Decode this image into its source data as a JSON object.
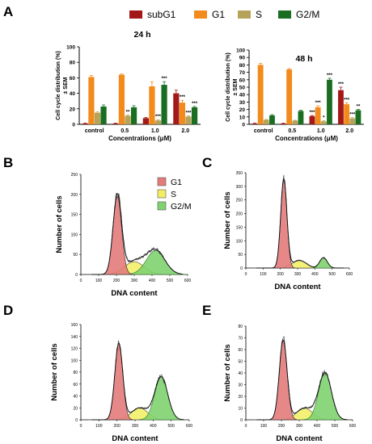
{
  "panel_labels": [
    "A",
    "B",
    "C",
    "D",
    "E"
  ],
  "legend_bar": {
    "items": [
      {
        "name": "subG1",
        "color": "#a31818"
      },
      {
        "name": "G1",
        "color": "#f28a1c"
      },
      {
        "name": "S",
        "color": "#b5a35a"
      },
      {
        "name": "G2/M",
        "color": "#1a6e22"
      }
    ]
  },
  "legend_hist": {
    "items": [
      {
        "name": "G1",
        "color": "#e47b7b"
      },
      {
        "name": "S",
        "color": "#f2ee62"
      },
      {
        "name": "G2/M",
        "color": "#7fd36f"
      }
    ]
  },
  "chart_data": [
    {
      "type": "bar",
      "panel": "A-left",
      "title": "24 h",
      "ylabel": "Cell cycle distribution (%)\n± SEM",
      "xlabel": "Concentrations (μM)",
      "categories": [
        "control",
        "0.5",
        "1.0",
        "2.0"
      ],
      "ylim": [
        0,
        100
      ],
      "yticks": [
        0,
        20,
        40,
        60,
        80,
        100
      ],
      "series": [
        {
          "name": "subG1",
          "values": [
            1,
            1,
            8,
            40
          ],
          "err": [
            0.5,
            0.5,
            1,
            4
          ]
        },
        {
          "name": "G1",
          "values": [
            61,
            64,
            49,
            28
          ],
          "err": [
            2,
            1,
            6,
            3
          ]
        },
        {
          "name": "S",
          "values": [
            15,
            11,
            5,
            10
          ],
          "err": [
            1,
            1,
            1,
            1
          ]
        },
        {
          "name": "G2/M",
          "values": [
            23,
            22,
            51,
            22
          ],
          "err": [
            2,
            2,
            4,
            1
          ]
        }
      ],
      "significance": [
        [
          null,
          null,
          null,
          null
        ],
        [
          null,
          null,
          null,
          "***"
        ],
        [
          null,
          "**",
          "***",
          "***"
        ],
        [
          null,
          null,
          "***",
          "***"
        ]
      ]
    },
    {
      "type": "bar",
      "panel": "A-right",
      "title": "48 h",
      "ylabel": "Cell cycle distribution (%)\n± SEM",
      "xlabel": "Concentrations (μM)",
      "categories": [
        "control",
        "0.5",
        "1.0",
        "2.0"
      ],
      "ylim": [
        0,
        100
      ],
      "yticks": [
        0,
        10,
        20,
        30,
        40,
        50,
        60,
        70,
        80,
        90,
        100
      ],
      "series": [
        {
          "name": "subG1",
          "values": [
            1,
            1,
            11,
            46
          ],
          "err": [
            0.5,
            0.5,
            1,
            4
          ]
        },
        {
          "name": "G1",
          "values": [
            80,
            74,
            23,
            27
          ],
          "err": [
            2,
            1,
            2,
            2
          ]
        },
        {
          "name": "S",
          "values": [
            6,
            5,
            4,
            8
          ],
          "err": [
            0.5,
            0.5,
            1,
            1
          ]
        },
        {
          "name": "G2/M",
          "values": [
            12,
            18,
            60,
            19
          ],
          "err": [
            1,
            1,
            2,
            1
          ]
        }
      ],
      "significance": [
        [
          null,
          null,
          "***",
          "***"
        ],
        [
          null,
          null,
          "***",
          "***"
        ],
        [
          null,
          null,
          "*",
          "***"
        ],
        [
          null,
          null,
          "***",
          "**"
        ]
      ]
    },
    {
      "type": "area",
      "panel": "B",
      "ylabel": "Number of cells",
      "xlabel": "DNA content",
      "xlim": [
        0,
        600
      ],
      "xticks": [
        0,
        100,
        200,
        300,
        400,
        500,
        600
      ],
      "ylim": [
        0,
        250
      ],
      "yticks": [
        0,
        50,
        100,
        150,
        200,
        250
      ],
      "peaks": [
        {
          "phase": "G1",
          "center": 205,
          "sd": 24,
          "height": 195
        },
        {
          "phase": "S",
          "center": 300,
          "sd": 55,
          "height": 32
        },
        {
          "phase": "G2/M",
          "center": 420,
          "sd": 52,
          "height": 60
        }
      ]
    },
    {
      "type": "area",
      "panel": "C",
      "ylabel": "Number of cells",
      "xlabel": "DNA content",
      "xlim": [
        0,
        600
      ],
      "xticks": [
        0,
        100,
        200,
        300,
        400,
        500,
        600
      ],
      "ylim": [
        0,
        350
      ],
      "yticks": [
        0,
        50,
        100,
        150,
        200,
        250,
        300,
        350
      ],
      "peaks": [
        {
          "phase": "G1",
          "center": 220,
          "sd": 18,
          "height": 325
        },
        {
          "phase": "S",
          "center": 310,
          "sd": 40,
          "height": 28
        },
        {
          "phase": "G2/M",
          "center": 450,
          "sd": 22,
          "height": 38
        }
      ]
    },
    {
      "type": "area",
      "panel": "D",
      "ylabel": "Number of cells",
      "xlabel": "DNA content",
      "xlim": [
        0,
        600
      ],
      "xticks": [
        0,
        100,
        200,
        300,
        400,
        500,
        600
      ],
      "ylim": [
        0,
        160
      ],
      "yticks": [
        0,
        20,
        40,
        60,
        80,
        100,
        120,
        140,
        160
      ],
      "peaks": [
        {
          "phase": "G1",
          "center": 210,
          "sd": 22,
          "height": 128
        },
        {
          "phase": "S",
          "center": 325,
          "sd": 45,
          "height": 20
        },
        {
          "phase": "G2/M",
          "center": 445,
          "sd": 36,
          "height": 72
        }
      ]
    },
    {
      "type": "area",
      "panel": "E",
      "ylabel": "Number of cells",
      "xlabel": "DNA content",
      "xlim": [
        0,
        600
      ],
      "xticks": [
        0,
        100,
        200,
        300,
        400,
        500,
        600
      ],
      "ylim": [
        0,
        80
      ],
      "yticks": [
        0,
        10,
        20,
        30,
        40,
        50,
        60,
        70,
        80
      ],
      "peaks": [
        {
          "phase": "G1",
          "center": 210,
          "sd": 22,
          "height": 68
        },
        {
          "phase": "S",
          "center": 330,
          "sd": 45,
          "height": 10
        },
        {
          "phase": "G2/M",
          "center": 445,
          "sd": 36,
          "height": 40
        }
      ]
    }
  ]
}
